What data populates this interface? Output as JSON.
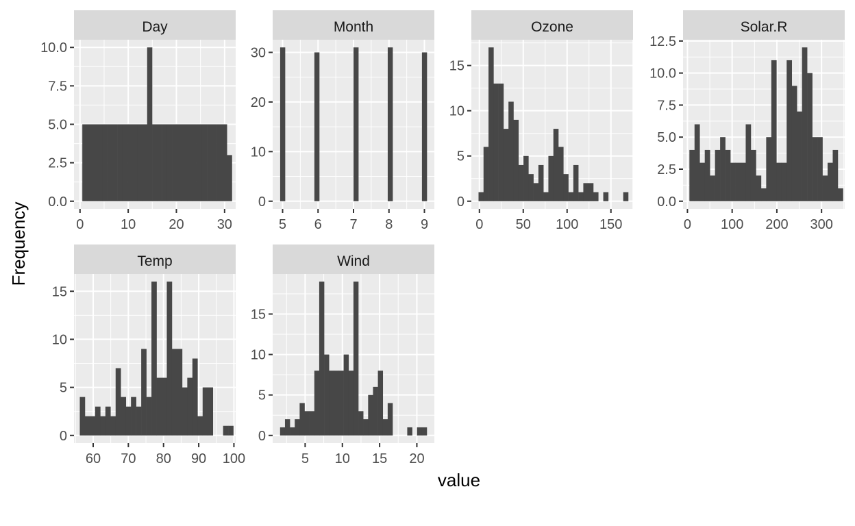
{
  "chart_data": {
    "type": "bar",
    "layout": "facet-wrap histograms, 30 bins each, free scales",
    "xlabel": "value",
    "ylabel": "Frequency",
    "grid": true,
    "bar_color": "#474747",
    "panel_background": "#ebebeb",
    "strip_background": "#d9d9d9",
    "panels": [
      {
        "name": "Day",
        "x_ticks": [
          0,
          10,
          20,
          30
        ],
        "y_ticks": [
          "0.0",
          "2.5",
          "5.0",
          "7.5",
          "10.0"
        ],
        "xlim": [
          -1.25,
          32.3
        ],
        "ylim": [
          -0.5,
          10.5
        ],
        "bin_start": 0.48,
        "bin_width": 1.0345,
        "counts": [
          5,
          5,
          5,
          5,
          5,
          5,
          5,
          5,
          5,
          5,
          5,
          5,
          5,
          10,
          5,
          5,
          5,
          5,
          5,
          5,
          5,
          5,
          5,
          5,
          5,
          5,
          5,
          5,
          5,
          3
        ]
      },
      {
        "name": "Month",
        "x_ticks": [
          5,
          6,
          7,
          8,
          9
        ],
        "y_ticks": [
          "0",
          "10",
          "20",
          "30"
        ],
        "xlim": [
          4.72,
          9.28
        ],
        "ylim": [
          -1.55,
          32.55
        ],
        "bin_start": 4.931,
        "bin_width": 0.1379,
        "counts": [
          31,
          0,
          0,
          0,
          0,
          0,
          0,
          30,
          0,
          0,
          0,
          0,
          0,
          0,
          0,
          31,
          0,
          0,
          0,
          0,
          0,
          0,
          31,
          0,
          0,
          0,
          0,
          0,
          0,
          30
        ]
      },
      {
        "name": "Ozone",
        "x_ticks": [
          0,
          50,
          100,
          150
        ],
        "y_ticks": [
          "0",
          "5",
          "10",
          "15"
        ],
        "xlim": [
          -9.2,
          175.2
        ],
        "ylim": [
          -0.85,
          17.85
        ],
        "bin_start": -1.0,
        "bin_width": 5.69,
        "counts": [
          1,
          6,
          17,
          13,
          13,
          8,
          11,
          9,
          4,
          5,
          3,
          2,
          4,
          1,
          5,
          8,
          6,
          3,
          1,
          4,
          1,
          2,
          2,
          1,
          0,
          1,
          0,
          0,
          0,
          1
        ]
      },
      {
        "name": "Solar.R",
        "x_ticks": [
          0,
          100,
          200,
          300
        ],
        "y_ticks": [
          "0.0",
          "2.5",
          "5.0",
          "7.5",
          "10.0",
          "12.5"
        ],
        "xlim": [
          -9.85,
          351.85
        ],
        "ylim": [
          -0.6,
          12.6
        ],
        "bin_start": 4.4,
        "bin_width": 11.45,
        "counts": [
          4,
          6,
          3,
          4,
          2,
          4,
          5,
          4,
          3,
          3,
          3,
          6,
          4,
          2,
          1,
          5,
          11,
          3,
          3,
          11,
          9,
          7,
          12,
          10,
          5,
          5,
          2,
          3,
          4,
          1
        ]
      },
      {
        "name": "Temp",
        "x_ticks": [
          60,
          70,
          80,
          90,
          100
        ],
        "y_ticks": [
          "0",
          "5",
          "10",
          "15"
        ],
        "xlim": [
          54.55,
          100.5
        ],
        "ylim": [
          -0.8,
          16.8
        ],
        "bin_start": 56.2,
        "bin_width": 1.4545,
        "counts": [
          4,
          2,
          2,
          3,
          2,
          3,
          2,
          7,
          4,
          3,
          4,
          3,
          9,
          4,
          16,
          6,
          6,
          16,
          9,
          9,
          5,
          6,
          8,
          2,
          5,
          5,
          0,
          0,
          1,
          1
        ]
      },
      {
        "name": "Wind",
        "x_ticks": [
          5,
          10,
          15,
          20
        ],
        "y_ticks": [
          "0",
          "5",
          "10",
          "15"
        ],
        "xlim": [
          0.64,
          22.35
        ],
        "ylim": [
          -0.95,
          19.95
        ],
        "bin_start": 1.635,
        "bin_width": 0.6567,
        "counts": [
          1,
          2,
          1,
          2,
          4,
          3,
          3,
          8,
          19,
          10,
          8,
          8,
          8,
          10,
          8,
          19,
          3,
          2,
          5,
          6,
          8,
          2,
          4,
          0,
          0,
          0,
          1,
          0,
          1,
          1
        ]
      }
    ]
  }
}
